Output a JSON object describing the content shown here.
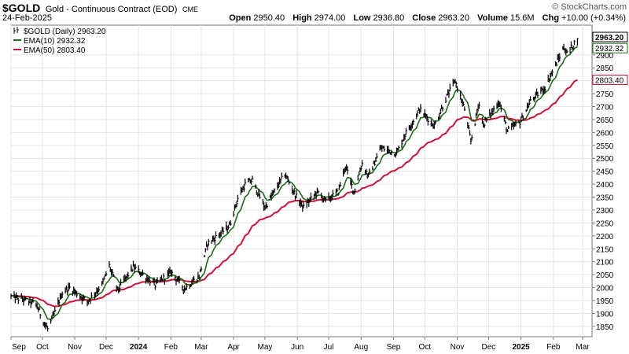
{
  "header": {
    "symbol": "$GOLD",
    "description": "Gold - Continuous Contract (EOD)",
    "exchange": "CME",
    "date": "24-Feb-2025",
    "brand": "© StockCharts.com",
    "open_label": "Open",
    "open": "2950.40",
    "high_label": "High",
    "high": "2974.00",
    "low_label": "Low",
    "low": "2936.80",
    "close_label": "Close",
    "close": "2963.20",
    "volume_label": "Volume",
    "volume": "15.6M",
    "chg_label": "Chg",
    "chg": "+10.00 (+0.34%)"
  },
  "legend": [
    {
      "text": "$GOLD (Daily) 2963.20",
      "color": "#000000"
    },
    {
      "text": "EMA(10) 2932.32",
      "color": "#1a6b1a"
    },
    {
      "text": "EMA(50) 2803.40",
      "color": "#d0103a"
    }
  ],
  "chart_data": {
    "type": "line",
    "style": "hlc-bars",
    "grid": true,
    "ylim": [
      1810,
      3015
    ],
    "yticks": [
      1850,
      1900,
      1950,
      2000,
      2050,
      2100,
      2150,
      2200,
      2250,
      2300,
      2350,
      2400,
      2450,
      2500,
      2550,
      2600,
      2650,
      2700,
      2750,
      2800,
      2850,
      2900
    ],
    "xlim": [
      "2023-09-01",
      "2025-03-10"
    ],
    "xticks": [
      {
        "date": "2023-09-01",
        "label": "Sep",
        "bold": false
      },
      {
        "date": "2023-10-01",
        "label": "Oct",
        "bold": false
      },
      {
        "date": "2023-11-01",
        "label": "Nov",
        "bold": false
      },
      {
        "date": "2023-12-01",
        "label": "Dec",
        "bold": false
      },
      {
        "date": "2024-01-01",
        "label": "2024",
        "bold": true
      },
      {
        "date": "2024-02-01",
        "label": "Feb",
        "bold": false
      },
      {
        "date": "2024-03-01",
        "label": "Mar",
        "bold": false
      },
      {
        "date": "2024-04-01",
        "label": "Apr",
        "bold": false
      },
      {
        "date": "2024-05-01",
        "label": "May",
        "bold": false
      },
      {
        "date": "2024-06-01",
        "label": "Jun",
        "bold": false
      },
      {
        "date": "2024-07-01",
        "label": "Jul",
        "bold": false
      },
      {
        "date": "2024-08-01",
        "label": "Aug",
        "bold": false
      },
      {
        "date": "2024-09-01",
        "label": "Sep",
        "bold": false
      },
      {
        "date": "2024-10-01",
        "label": "Oct",
        "bold": false
      },
      {
        "date": "2024-11-01",
        "label": "Nov",
        "bold": false
      },
      {
        "date": "2024-12-01",
        "label": "Dec",
        "bold": false
      },
      {
        "date": "2025-01-01",
        "label": "2025",
        "bold": true
      },
      {
        "date": "2025-02-01",
        "label": "Feb",
        "bold": false
      },
      {
        "date": "2025-03-01",
        "label": "Mar",
        "bold": false
      }
    ],
    "price_anchors": [
      [
        "2023-09-01",
        1965
      ],
      [
        "2023-09-15",
        1950
      ],
      [
        "2023-09-25",
        1935
      ],
      [
        "2023-10-02",
        1870
      ],
      [
        "2023-10-06",
        1840
      ],
      [
        "2023-10-12",
        1895
      ],
      [
        "2023-10-20",
        1980
      ],
      [
        "2023-10-27",
        2000
      ],
      [
        "2023-11-13",
        1945
      ],
      [
        "2023-11-27",
        2010
      ],
      [
        "2023-12-04",
        2085
      ],
      [
        "2023-12-12",
        1990
      ],
      [
        "2023-12-27",
        2080
      ],
      [
        "2024-01-05",
        2050
      ],
      [
        "2024-01-17",
        2010
      ],
      [
        "2024-02-01",
        2060
      ],
      [
        "2024-02-14",
        1995
      ],
      [
        "2024-02-28",
        2045
      ],
      [
        "2024-03-07",
        2170
      ],
      [
        "2024-03-21",
        2215
      ],
      [
        "2024-03-28",
        2240
      ],
      [
        "2024-04-05",
        2345
      ],
      [
        "2024-04-12",
        2400
      ],
      [
        "2024-04-19",
        2415
      ],
      [
        "2024-04-26",
        2350
      ],
      [
        "2024-05-01",
        2310
      ],
      [
        "2024-05-20",
        2440
      ],
      [
        "2024-05-31",
        2350
      ],
      [
        "2024-06-07",
        2310
      ],
      [
        "2024-06-20",
        2370
      ],
      [
        "2024-06-28",
        2335
      ],
      [
        "2024-07-10",
        2370
      ],
      [
        "2024-07-17",
        2470
      ],
      [
        "2024-07-25",
        2370
      ],
      [
        "2024-08-02",
        2480
      ],
      [
        "2024-08-08",
        2430
      ],
      [
        "2024-08-20",
        2540
      ],
      [
        "2024-09-04",
        2520
      ],
      [
        "2024-09-13",
        2600
      ],
      [
        "2024-09-20",
        2645
      ],
      [
        "2024-09-26",
        2690
      ],
      [
        "2024-10-10",
        2625
      ],
      [
        "2024-10-21",
        2730
      ],
      [
        "2024-10-30",
        2800
      ],
      [
        "2024-11-08",
        2690
      ],
      [
        "2024-11-14",
        2565
      ],
      [
        "2024-11-22",
        2715
      ],
      [
        "2024-11-26",
        2630
      ],
      [
        "2024-12-11",
        2720
      ],
      [
        "2024-12-19",
        2605
      ],
      [
        "2024-12-31",
        2640
      ],
      [
        "2025-01-10",
        2720
      ],
      [
        "2025-01-24",
        2775
      ],
      [
        "2025-02-03",
        2860
      ],
      [
        "2025-02-11",
        2930
      ],
      [
        "2025-02-14",
        2905
      ],
      [
        "2025-02-24",
        2963
      ]
    ],
    "series": [
      {
        "name": "$GOLD (Daily)",
        "color": "#000000",
        "last": 2963.2
      },
      {
        "name": "EMA(10)",
        "color": "#1a6b1a",
        "period": 10,
        "last": 2932.32
      },
      {
        "name": "EMA(50)",
        "color": "#d0103a",
        "period": 50,
        "last": 2803.4
      }
    ]
  },
  "axis_badges": [
    {
      "text": "2963.20",
      "value": 2963.2,
      "fill": "#ffffff",
      "stroke": "#000000",
      "textcolor": "#000000",
      "bold": true
    },
    {
      "text": "2932.32",
      "value": 2932.32,
      "fill": "#ffffff",
      "stroke": "#1a6b1a",
      "textcolor": "#000000",
      "bold": false
    },
    {
      "text": "2803.40",
      "value": 2803.4,
      "fill": "#ffffff",
      "stroke": "#d0103a",
      "textcolor": "#000000",
      "bold": false
    }
  ]
}
